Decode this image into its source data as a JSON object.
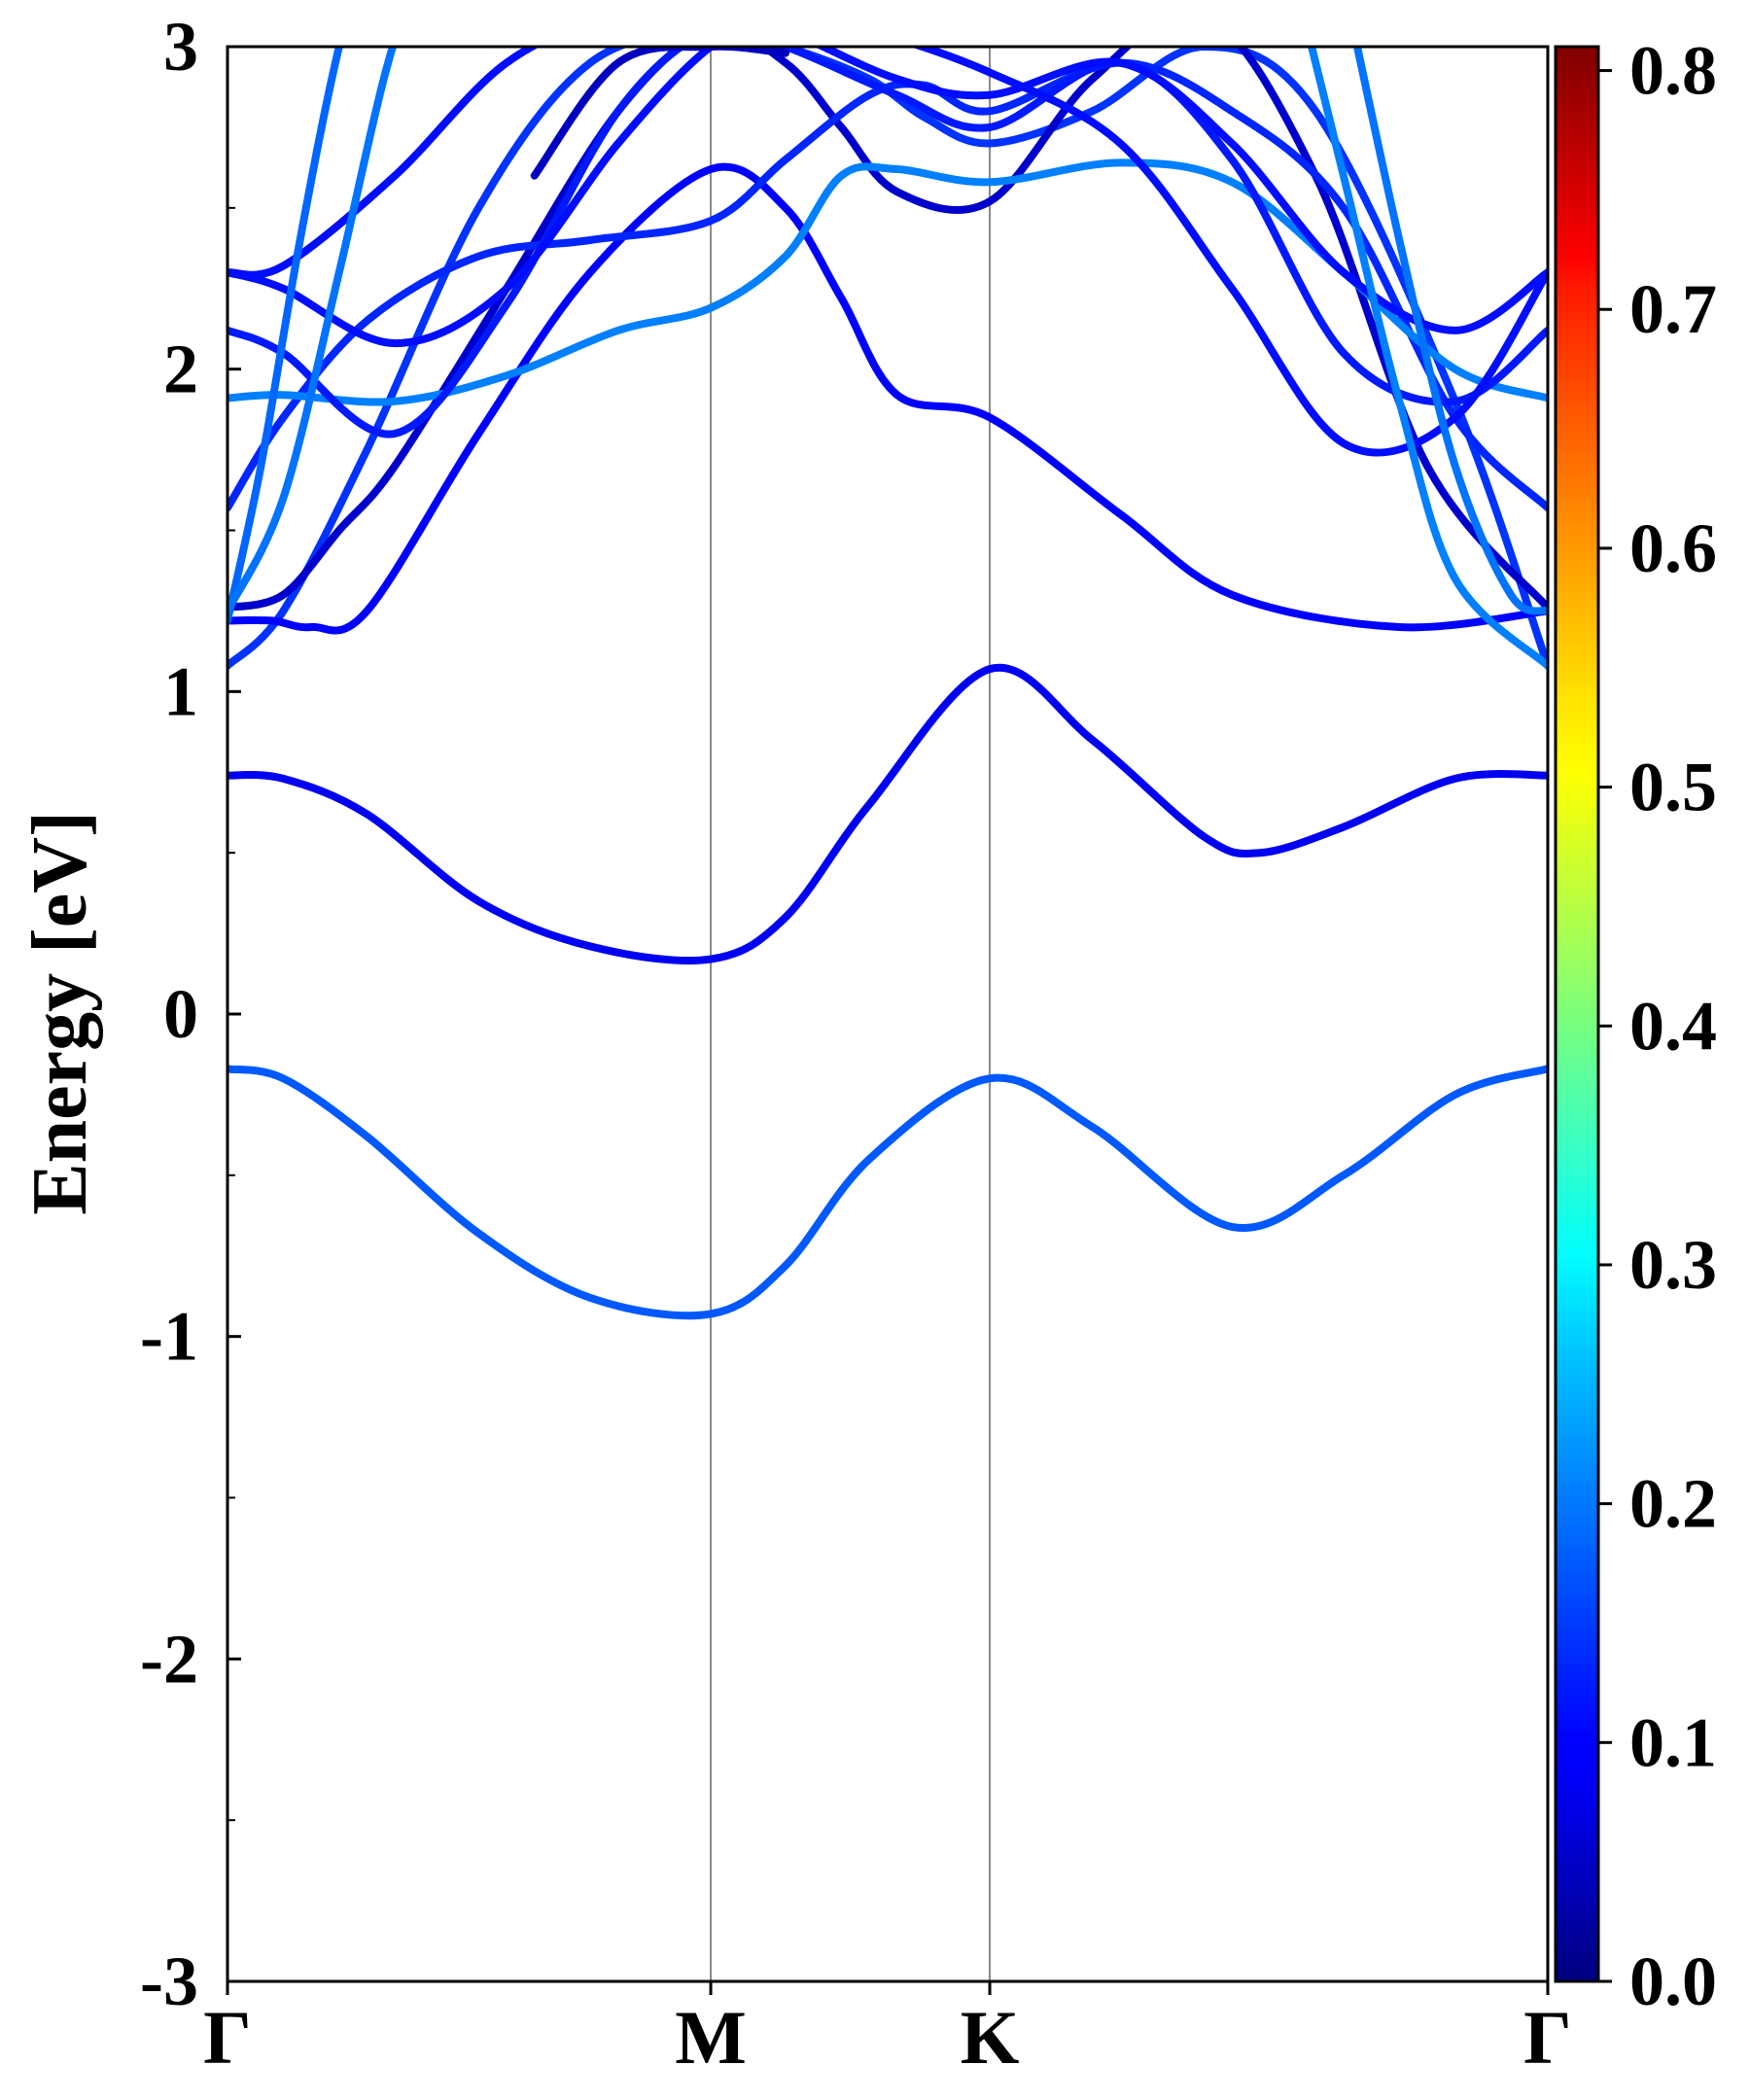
{
  "chart_data": {
    "type": "line",
    "subtype": "electronic-band-structure",
    "title": "",
    "xlabel": "",
    "ylabel": "Energy [eV]",
    "ylim": [
      -3,
      3
    ],
    "yticks": [
      "3",
      "2",
      "1",
      "0",
      "-1",
      "-2",
      "-3"
    ],
    "ytick_values": [
      3,
      2,
      1,
      0,
      -1,
      -2,
      -3
    ],
    "minor_yticks": [
      2.5,
      1.5,
      0.5,
      -0.5,
      -1.5,
      -2.5
    ],
    "kpath": {
      "labels": [
        "Γ",
        "M",
        "K",
        "Γ"
      ],
      "positions": [
        0,
        0.866,
        1.366,
        2.366
      ]
    },
    "colorbar": {
      "colormap": "jet",
      "range": [
        0.0,
        0.8
      ],
      "tick_labels": [
        "0.0",
        "0.1",
        "0.2",
        "0.3",
        "0.4",
        "0.5",
        "0.6",
        "0.7",
        "0.8"
      ],
      "tick_values": [
        0,
        0.1,
        0.2,
        0.3,
        0.4,
        0.5,
        0.6,
        0.7,
        0.8
      ]
    },
    "grid": false,
    "series": [
      {
        "x": [
          0,
          0.1,
          0.25,
          0.45,
          0.65,
          0.866,
          1.0,
          1.15,
          1.366,
          1.55,
          1.8,
          2.0,
          2.2,
          2.366
        ],
        "y": [
          -0.17,
          -0.2,
          -0.38,
          -0.68,
          -0.88,
          -0.93,
          -0.78,
          -0.45,
          -0.2,
          -0.35,
          -0.66,
          -0.5,
          -0.25,
          -0.17
        ],
        "weight": 0.17
      },
      {
        "x": [
          0,
          0.1,
          0.25,
          0.45,
          0.65,
          0.866,
          1.0,
          1.15,
          1.366,
          1.55,
          1.75,
          1.85,
          2.0,
          2.2,
          2.366
        ],
        "y": [
          0.74,
          0.73,
          0.62,
          0.35,
          0.21,
          0.17,
          0.3,
          0.65,
          1.07,
          0.85,
          0.55,
          0.5,
          0.58,
          0.73,
          0.74
        ],
        "weight": 0.09
      },
      {
        "x": [
          0,
          0.1,
          0.25,
          0.45,
          0.65,
          0.866,
          1.0,
          1.15,
          1.25,
          1.366,
          1.55,
          1.75,
          1.95,
          2.2,
          2.366
        ],
        "y": [
          1.08,
          1.25,
          1.75,
          2.5,
          2.95,
          3.05,
          3.0,
          2.9,
          2.78,
          2.7,
          2.8,
          3.0,
          2.8,
          1.9,
          1.08
        ],
        "weight": 0.14
      },
      {
        "x": [
          0,
          0.08,
          0.15,
          0.25,
          0.45,
          0.65,
          0.866,
          1.0,
          1.1,
          1.2,
          1.366,
          1.6,
          1.8,
          2.1,
          2.366
        ],
        "y": [
          1.22,
          1.22,
          1.2,
          1.25,
          1.8,
          2.3,
          2.62,
          2.5,
          2.22,
          1.92,
          1.85,
          1.55,
          1.3,
          1.2,
          1.25
        ],
        "weight": 0.1
      },
      {
        "x": [
          0,
          0.1,
          0.2,
          0.3,
          0.5,
          0.7,
          0.866,
          1.0,
          1.1,
          1.2,
          1.366,
          1.55,
          1.75,
          1.95,
          2.15,
          2.366
        ],
        "y": [
          1.26,
          1.3,
          1.5,
          1.7,
          2.25,
          2.8,
          3.05,
          2.95,
          2.75,
          2.55,
          2.52,
          2.9,
          3.1,
          2.6,
          1.7,
          1.26
        ],
        "weight": 0.06
      },
      {
        "x": [
          0,
          0.1,
          0.25,
          0.45,
          0.65,
          0.866,
          1.0,
          1.15,
          1.25,
          1.366,
          1.6,
          1.8,
          2.0,
          2.2,
          2.366
        ],
        "y": [
          1.57,
          1.85,
          2.15,
          2.35,
          2.4,
          2.46,
          2.65,
          2.85,
          2.88,
          2.8,
          2.95,
          2.8,
          2.5,
          1.85,
          1.57
        ],
        "weight": 0.13
      },
      {
        "x": [
          0,
          0.1,
          0.3,
          0.5,
          0.7,
          0.866,
          1.0,
          1.1,
          1.2,
          1.366,
          1.6,
          1.8,
          2.0,
          2.2,
          2.366
        ],
        "y": [
          1.91,
          1.92,
          1.9,
          1.98,
          2.12,
          2.19,
          2.35,
          2.6,
          2.62,
          2.58,
          2.64,
          2.58,
          2.3,
          2.0,
          1.91
        ],
        "weight": 0.2
      },
      {
        "x": [
          0,
          0.1,
          0.3,
          0.5,
          0.7,
          0.866,
          1.0,
          1.2,
          1.366,
          1.6,
          1.8,
          2.0,
          2.2,
          2.366
        ],
        "y": [
          2.12,
          2.05,
          1.8,
          2.2,
          2.8,
          3.05,
          3.0,
          2.85,
          2.75,
          2.95,
          2.65,
          2.05,
          1.9,
          2.12
        ],
        "weight": 0.12
      },
      {
        "x": [
          0,
          0.1,
          0.3,
          0.5,
          0.7,
          0.866,
          1.0,
          1.15,
          1.366,
          1.6,
          1.8,
          2.0,
          2.2,
          2.366
        ],
        "y": [
          2.3,
          2.25,
          2.08,
          2.25,
          2.7,
          3.0,
          3.1,
          3.05,
          2.92,
          2.7,
          2.25,
          1.77,
          1.85,
          2.3
        ],
        "weight": 0.11
      },
      {
        "x": [
          0,
          0.1,
          0.3,
          0.5,
          0.7,
          0.866,
          1.0,
          1.2,
          1.366,
          1.6,
          1.8,
          2.0,
          2.2,
          2.366
        ],
        "y": [
          2.3,
          2.32,
          2.6,
          2.95,
          3.1,
          3.1,
          3.05,
          2.9,
          2.85,
          2.95,
          2.7,
          2.3,
          2.12,
          2.3
        ],
        "weight": 0.11
      },
      {
        "x": [
          0,
          0.06,
          0.13,
          0.2,
          0.28
        ],
        "y": [
          1.22,
          1.7,
          2.4,
          3.0,
          3.5
        ],
        "weight": 0.18
      },
      {
        "x": [
          0,
          0.1,
          0.2,
          0.28,
          0.35
        ],
        "y": [
          1.25,
          1.6,
          2.3,
          2.9,
          3.3
        ],
        "weight": 0.19
      },
      {
        "x": [
          1.9,
          2.0,
          2.1,
          2.2,
          2.366
        ],
        "y": [
          3.3,
          2.6,
          1.9,
          1.35,
          1.08
        ],
        "weight": 0.2
      },
      {
        "x": [
          2.0,
          2.1,
          2.2,
          2.3,
          2.366
        ],
        "y": [
          3.2,
          2.4,
          1.7,
          1.3,
          1.25
        ],
        "weight": 0.19
      },
      {
        "x": [
          0.55,
          0.7,
          0.866,
          1.0
        ],
        "y": [
          2.6,
          2.95,
          3.0,
          2.98
        ],
        "weight": 0.05
      }
    ]
  }
}
